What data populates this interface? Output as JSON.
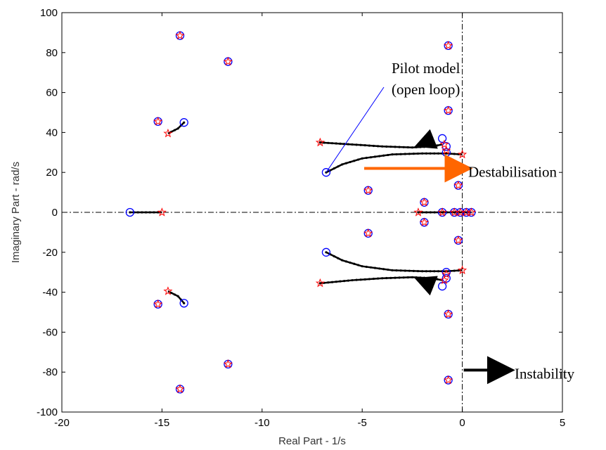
{
  "chart_data": {
    "type": "scatter",
    "title": "",
    "xlabel": "Real Part - 1/s",
    "ylabel": "Imaginary Part - rad/s",
    "xlim": [
      -20,
      5
    ],
    "ylim": [
      -100,
      100
    ],
    "xticks": [
      -20,
      -15,
      -10,
      -5,
      0,
      5
    ],
    "yticks": [
      100,
      80,
      60,
      40,
      20,
      0,
      -20,
      -40,
      -60,
      -80,
      -100
    ],
    "xtick_labels": [
      "-20",
      "-15",
      "-10",
      "-5",
      "0",
      "5"
    ],
    "ytick_labels": [
      "100",
      "80",
      "60",
      "40",
      "20",
      "0",
      "-20",
      "-40",
      "-60",
      "-80",
      "-100"
    ],
    "grid": false,
    "reference_lines": {
      "x": 0,
      "y": 0,
      "style": "dash-dot"
    },
    "colors": {
      "open_loop": "#0000ff",
      "closed_loop": "#ff0000",
      "locus": "#000000",
      "arrow_destab": "#ff6600",
      "arrow_instab": "#000000",
      "pilot_line": "#0000ff"
    },
    "open_loop_poles": [
      [
        -14.1,
        88.5
      ],
      [
        -14.1,
        -88.5
      ],
      [
        -11.7,
        75.5
      ],
      [
        -11.7,
        -76
      ],
      [
        -15.2,
        45.5
      ],
      [
        -15.2,
        -46
      ],
      [
        -13.9,
        45
      ],
      [
        -13.9,
        -45.5
      ],
      [
        -16.6,
        0
      ],
      [
        -6.8,
        20
      ],
      [
        -6.8,
        -20
      ],
      [
        -4.7,
        11
      ],
      [
        -4.7,
        -10.5
      ],
      [
        -1.9,
        5
      ],
      [
        -1.9,
        -5
      ],
      [
        -0.7,
        83.5
      ],
      [
        -0.7,
        -84
      ],
      [
        -0.7,
        51
      ],
      [
        -0.7,
        -51
      ],
      [
        -1.0,
        37
      ],
      [
        -1.0,
        -37
      ],
      [
        -0.8,
        33
      ],
      [
        -0.8,
        -33
      ],
      [
        -0.8,
        30
      ],
      [
        -0.8,
        -30
      ],
      [
        -0.2,
        13.5
      ],
      [
        -0.2,
        -14
      ],
      [
        -1.0,
        0
      ],
      [
        -0.4,
        0
      ],
      [
        -0.1,
        0
      ],
      [
        0.2,
        0
      ],
      [
        0.45,
        0
      ]
    ],
    "closed_loop_poles": [
      [
        -14.1,
        88.5
      ],
      [
        -14.1,
        -88.5
      ],
      [
        -11.7,
        75.5
      ],
      [
        -11.7,
        -76
      ],
      [
        -15.2,
        45.5
      ],
      [
        -15.2,
        -46
      ],
      [
        -14.7,
        39.5
      ],
      [
        -14.7,
        -39.5
      ],
      [
        -15.0,
        0
      ],
      [
        -7.1,
        35
      ],
      [
        -7.1,
        -35.5
      ],
      [
        -4.7,
        11
      ],
      [
        -4.7,
        -10.5
      ],
      [
        -1.9,
        5
      ],
      [
        -1.9,
        -5
      ],
      [
        -0.7,
        83.5
      ],
      [
        -0.7,
        -84
      ],
      [
        -0.7,
        51
      ],
      [
        -0.7,
        -51
      ],
      [
        -0.9,
        34
      ],
      [
        -0.9,
        -34
      ],
      [
        -0.8,
        31
      ],
      [
        -0.8,
        -31
      ],
      [
        0,
        29
      ],
      [
        0,
        -29
      ],
      [
        -0.2,
        13.5
      ],
      [
        -0.2,
        -14
      ],
      [
        -2.2,
        0
      ],
      [
        -1.0,
        0
      ],
      [
        -0.4,
        0
      ],
      [
        -0.1,
        0
      ],
      [
        0.2,
        0
      ],
      [
        0.45,
        0
      ]
    ],
    "locus_branches": [
      {
        "points": [
          [
            -6.8,
            20
          ],
          [
            -6.0,
            24
          ],
          [
            -5.0,
            27
          ],
          [
            -3.5,
            29
          ],
          [
            -2.0,
            29.5
          ],
          [
            -0.8,
            29.5
          ],
          [
            0,
            29
          ]
        ]
      },
      {
        "points": [
          [
            -6.8,
            -20
          ],
          [
            -6.0,
            -24
          ],
          [
            -5.0,
            -27
          ],
          [
            -3.5,
            -29
          ],
          [
            -2.0,
            -29.5
          ],
          [
            -0.8,
            -29.5
          ],
          [
            0,
            -29
          ]
        ]
      },
      {
        "points": [
          [
            -7.1,
            35
          ],
          [
            -5.5,
            34
          ],
          [
            -4.0,
            33
          ],
          [
            -2.5,
            32.5
          ],
          [
            -1.5,
            33
          ],
          [
            -1.0,
            34
          ]
        ]
      },
      {
        "points": [
          [
            -7.1,
            -35.5
          ],
          [
            -5.5,
            -34
          ],
          [
            -4.0,
            -33
          ],
          [
            -2.5,
            -32.5
          ],
          [
            -1.5,
            -33
          ],
          [
            -1.0,
            -34
          ]
        ]
      },
      {
        "points": [
          [
            -16.6,
            0
          ],
          [
            -15.0,
            0
          ]
        ]
      },
      {
        "points": [
          [
            -2.2,
            0
          ],
          [
            0.45,
            0
          ]
        ]
      },
      {
        "points": [
          [
            -13.9,
            45
          ],
          [
            -14.2,
            42
          ],
          [
            -14.7,
            39.5
          ]
        ]
      },
      {
        "points": [
          [
            -13.9,
            -45.5
          ],
          [
            -14.2,
            -42
          ],
          [
            -14.7,
            -39.5
          ]
        ]
      }
    ],
    "branch_arrows": [
      {
        "from": [
          -1.6,
          36
        ],
        "to": [
          -2.1,
          34
        ]
      },
      {
        "from": [
          -1.6,
          -36
        ],
        "to": [
          -2.1,
          -34
        ]
      }
    ],
    "annotations": [
      {
        "text_lines": [
          "Pilot model",
          "(open loop)"
        ],
        "target": [
          -6.8,
          20
        ],
        "line_color": "#0000ff"
      },
      {
        "text": "Destabilisation",
        "arrow_from": [
          -4.9,
          22
        ],
        "arrow_to": [
          0.1,
          22
        ],
        "color": "#ff6600"
      },
      {
        "text": "Instability",
        "arrow_from": [
          0.0,
          -79
        ],
        "arrow_to": [
          2.5,
          -79
        ],
        "color": "#000000"
      }
    ]
  }
}
